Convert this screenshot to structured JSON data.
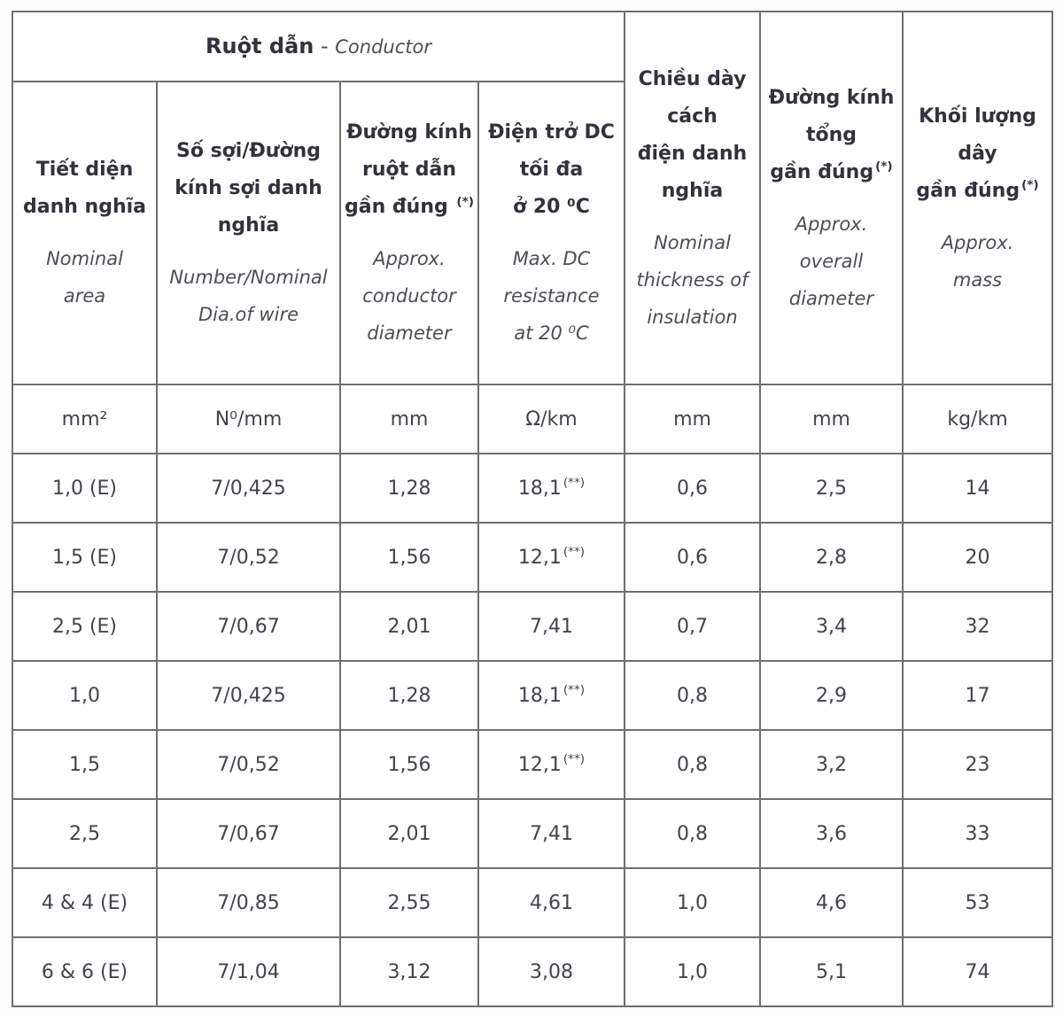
{
  "table": {
    "group_header": {
      "vi": "Ruột dẫn",
      "sep": " - ",
      "en": "Conductor"
    },
    "columns": [
      {
        "key": "nominal-area",
        "vi": "Tiết diện\ndanh nghĩa",
        "sup": "",
        "en": "Nominal\narea"
      },
      {
        "key": "number-nominal-dia-of-wire",
        "vi": "Số sợi/Đường\nkính sợi danh\nnghĩa",
        "sup": "",
        "en": "Number/Nominal\nDia.of wire"
      },
      {
        "key": "approx-conductor-diameter",
        "vi": "Đường kính\nruột dẫn\ngần đúng",
        "sup": "(*)",
        "en": "Approx.\nconductor\ndiameter"
      },
      {
        "key": "max-dc-resistance",
        "vi": "Điện trở DC\ntối đa\nở 20 ⁰C",
        "sup": "",
        "en": "Max. DC\nresistance\nat 20 ⁰C"
      },
      {
        "key": "nominal-insulation-thickness",
        "vi": "Chiều dày\ncách\nđiện danh\nnghĩa",
        "sup": "",
        "en": "Nominal\nthickness of\ninsulation"
      },
      {
        "key": "approx-overall-diameter",
        "vi": "Đường kính\ntổng\ngần đúng",
        "sup": "(*)",
        "en": "Approx.\noverall\ndiameter"
      },
      {
        "key": "approx-mass",
        "vi": "Khối lượng\ndây\ngần đúng",
        "sup": "(*)",
        "en": "Approx.\nmass"
      }
    ],
    "units": [
      "mm²",
      "N⁰/mm",
      "mm",
      "Ω/km",
      "mm",
      "mm",
      "kg/km"
    ],
    "rows": [
      [
        {
          "v": "1,0 (E)"
        },
        {
          "v": "7/0,425"
        },
        {
          "v": "1,28"
        },
        {
          "v": "18,1",
          "sup": "(**)"
        },
        {
          "v": "0,6"
        },
        {
          "v": "2,5"
        },
        {
          "v": "14"
        }
      ],
      [
        {
          "v": "1,5 (E)"
        },
        {
          "v": "7/0,52"
        },
        {
          "v": "1,56"
        },
        {
          "v": "12,1",
          "sup": "(**)"
        },
        {
          "v": "0,6"
        },
        {
          "v": "2,8"
        },
        {
          "v": "20"
        }
      ],
      [
        {
          "v": "2,5 (E)"
        },
        {
          "v": "7/0,67"
        },
        {
          "v": "2,01"
        },
        {
          "v": "7,41"
        },
        {
          "v": "0,7"
        },
        {
          "v": "3,4"
        },
        {
          "v": "32"
        }
      ],
      [
        {
          "v": "1,0"
        },
        {
          "v": "7/0,425"
        },
        {
          "v": "1,28"
        },
        {
          "v": "18,1",
          "sup": "(**)"
        },
        {
          "v": "0,8"
        },
        {
          "v": "2,9"
        },
        {
          "v": "17"
        }
      ],
      [
        {
          "v": "1,5"
        },
        {
          "v": "7/0,52"
        },
        {
          "v": "1,56"
        },
        {
          "v": "12,1",
          "sup": "(**)"
        },
        {
          "v": "0,8"
        },
        {
          "v": "3,2"
        },
        {
          "v": "23"
        }
      ],
      [
        {
          "v": "2,5"
        },
        {
          "v": "7/0,67"
        },
        {
          "v": "2,01"
        },
        {
          "v": "7,41"
        },
        {
          "v": "0,8"
        },
        {
          "v": "3,6"
        },
        {
          "v": "33"
        }
      ],
      [
        {
          "v": "4 & 4 (E)"
        },
        {
          "v": "7/0,85"
        },
        {
          "v": "2,55"
        },
        {
          "v": "4,61"
        },
        {
          "v": "1,0"
        },
        {
          "v": "4,6"
        },
        {
          "v": "53"
        }
      ],
      [
        {
          "v": "6 & 6 (E)"
        },
        {
          "v": "7/1,04"
        },
        {
          "v": "3,12"
        },
        {
          "v": "3,08"
        },
        {
          "v": "1,0"
        },
        {
          "v": "5,1"
        },
        {
          "v": "74"
        }
      ]
    ]
  }
}
